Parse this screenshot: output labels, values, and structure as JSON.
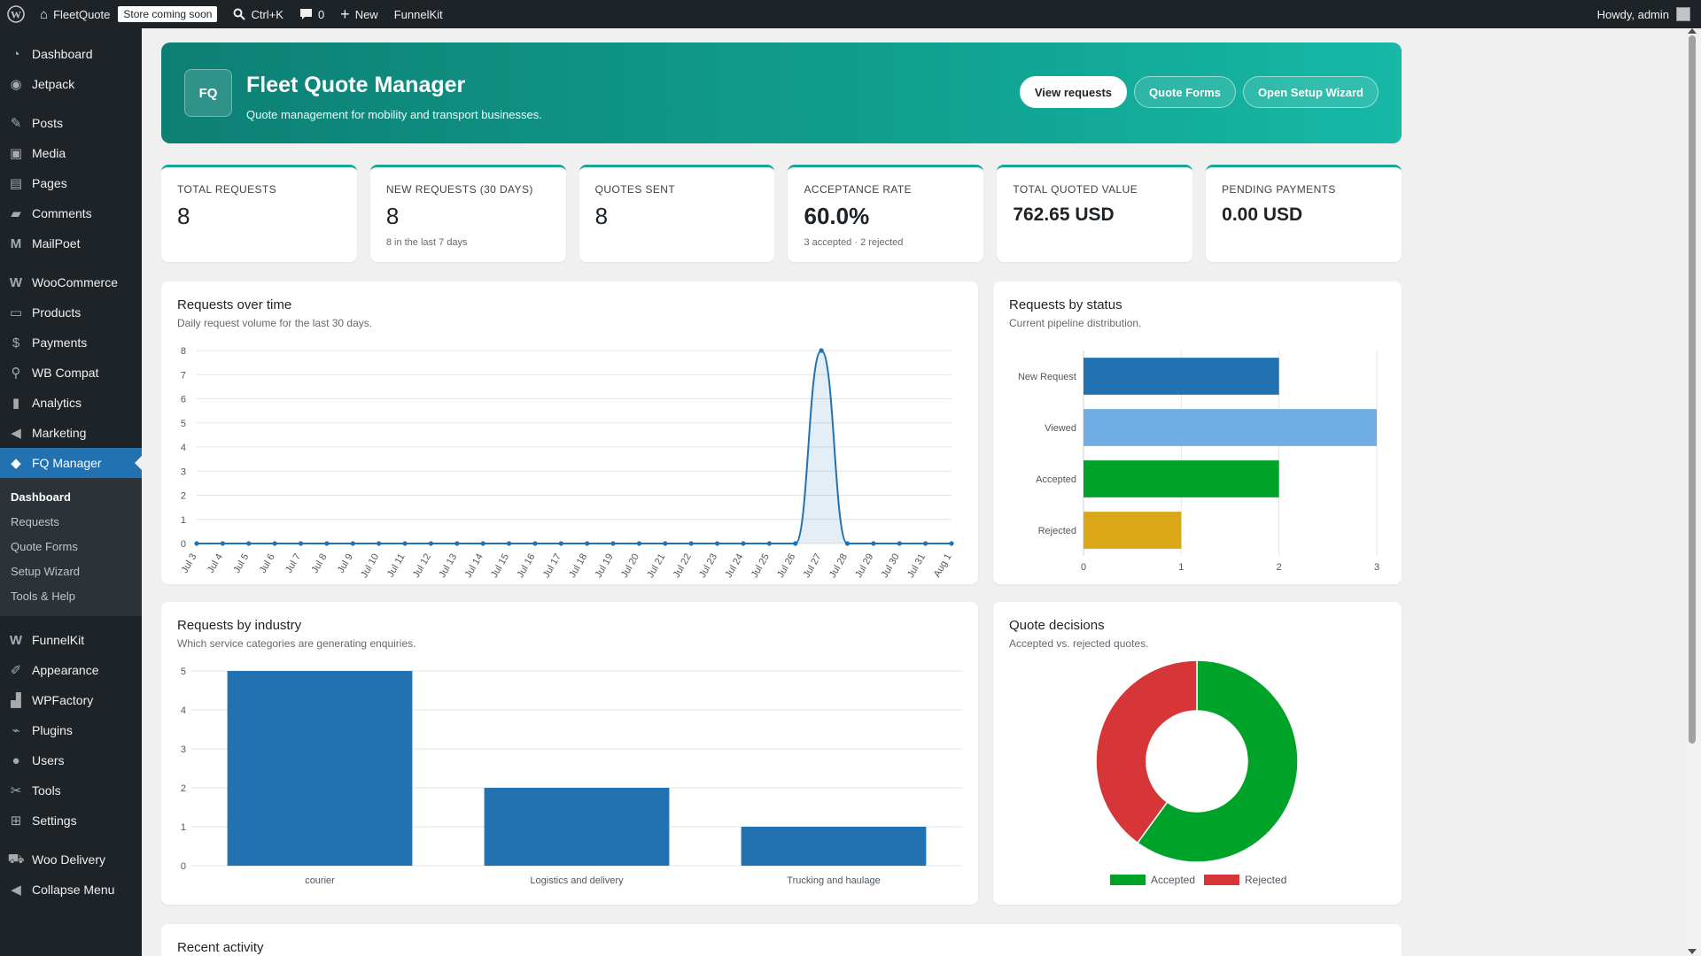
{
  "adminbar": {
    "site_name": "FleetQuote",
    "store_badge": "Store coming soon",
    "search_shortcut": "Ctrl+K",
    "comments_count": "0",
    "new_label": "New",
    "funnelkit_label": "FunnelKit",
    "greeting": "Howdy, admin"
  },
  "sidebar": {
    "items": [
      {
        "label": "Dashboard",
        "icon": "dashboard-icon"
      },
      {
        "label": "Jetpack",
        "icon": "jetpack-icon"
      },
      {
        "label": "Posts",
        "icon": "pin-icon"
      },
      {
        "label": "Media",
        "icon": "media-icon"
      },
      {
        "label": "Pages",
        "icon": "pages-icon"
      },
      {
        "label": "Comments",
        "icon": "comment-icon"
      },
      {
        "label": "MailPoet",
        "icon": "mailpoet-icon"
      },
      {
        "label": "WooCommerce",
        "icon": "woocommerce-icon"
      },
      {
        "label": "Products",
        "icon": "archive-icon"
      },
      {
        "label": "Payments",
        "icon": "dollar-icon"
      },
      {
        "label": "WB Compat",
        "icon": "search-icon"
      },
      {
        "label": "Analytics",
        "icon": "bar-chart-icon"
      },
      {
        "label": "Marketing",
        "icon": "megaphone-icon"
      },
      {
        "label": "FQ Manager",
        "icon": "tag-icon"
      },
      {
        "label": "FunnelKit",
        "icon": "funnelkit-icon"
      },
      {
        "label": "Appearance",
        "icon": "brush-icon"
      },
      {
        "label": "WPFactory",
        "icon": "factory-icon"
      },
      {
        "label": "Plugins",
        "icon": "plug-icon"
      },
      {
        "label": "Users",
        "icon": "user-icon"
      },
      {
        "label": "Tools",
        "icon": "wrench-icon"
      },
      {
        "label": "Settings",
        "icon": "settings-icon"
      },
      {
        "label": "Woo Delivery",
        "icon": "cart-icon"
      },
      {
        "label": "Collapse Menu",
        "icon": "collapse-icon"
      }
    ],
    "submenu": [
      "Dashboard",
      "Requests",
      "Quote Forms",
      "Setup Wizard",
      "Tools & Help"
    ]
  },
  "hero": {
    "logo": "FQ",
    "title": "Fleet Quote Manager",
    "subtitle": "Quote management for mobility and transport businesses.",
    "buttons": [
      "View requests",
      "Quote Forms",
      "Open Setup Wizard"
    ]
  },
  "stats": [
    {
      "label": "Total requests",
      "value": "8",
      "note": ""
    },
    {
      "label": "New requests (30 days)",
      "value": "8",
      "note": "8 in the last 7 days"
    },
    {
      "label": "Quotes sent",
      "value": "8",
      "note": ""
    },
    {
      "label": "Acceptance rate",
      "value": "60.0%",
      "note": "3 accepted · 2 rejected"
    },
    {
      "label": "Total quoted value",
      "value": "762.65 USD",
      "note": ""
    },
    {
      "label": "Pending payments",
      "value": "0.00 USD",
      "note": ""
    }
  ],
  "panels": {
    "over_time": {
      "title": "Requests over time",
      "subtitle": "Daily request volume for the last 30 days."
    },
    "by_status": {
      "title": "Requests by status",
      "subtitle": "Current pipeline distribution."
    },
    "by_industry": {
      "title": "Requests by industry",
      "subtitle": "Which service categories are generating enquiries."
    },
    "decisions": {
      "title": "Quote decisions",
      "subtitle": "Accepted vs. rejected quotes."
    },
    "recent": {
      "title": "Recent activity"
    }
  },
  "chart_data": [
    {
      "type": "area",
      "x": [
        "Jul 3",
        "Jul 4",
        "Jul 5",
        "Jul 6",
        "Jul 7",
        "Jul 8",
        "Jul 9",
        "Jul 10",
        "Jul 11",
        "Jul 12",
        "Jul 13",
        "Jul 14",
        "Jul 15",
        "Jul 16",
        "Jul 17",
        "Jul 18",
        "Jul 19",
        "Jul 20",
        "Jul 21",
        "Jul 22",
        "Jul 23",
        "Jul 24",
        "Jul 25",
        "Jul 26",
        "Jul 27",
        "Jul 28",
        "Jul 29",
        "Jul 30",
        "Jul 31",
        "Aug 1"
      ],
      "values": [
        0,
        0,
        0,
        0,
        0,
        0,
        0,
        0,
        0,
        0,
        0,
        0,
        0,
        0,
        0,
        0,
        0,
        0,
        0,
        0,
        0,
        0,
        0,
        0,
        8,
        0,
        0,
        0,
        0,
        0
      ],
      "yticks": [
        0,
        1,
        2,
        3,
        4,
        5,
        6,
        7,
        8
      ],
      "ylim": [
        0,
        8
      ],
      "color": "#2271b1",
      "grid": true
    },
    {
      "type": "bar",
      "orientation": "horizontal",
      "categories": [
        "New Request",
        "Viewed",
        "Accepted",
        "Rejected"
      ],
      "values": [
        2,
        3,
        2,
        1
      ],
      "colors": [
        "#2271b1",
        "#72aee6",
        "#00a32a",
        "#dba617"
      ],
      "xticks": [
        0,
        1,
        2,
        3
      ],
      "xlim": [
        0,
        3
      ],
      "grid": true
    },
    {
      "type": "bar",
      "categories": [
        "courier",
        "Logistics and delivery",
        "Trucking and haulage"
      ],
      "values": [
        5,
        2,
        1
      ],
      "color": "#2271b1",
      "yticks": [
        0,
        1,
        2,
        3,
        4,
        5
      ],
      "ylim": [
        0,
        5
      ],
      "grid": true
    },
    {
      "type": "pie",
      "donut": true,
      "labels": [
        "Accepted",
        "Rejected"
      ],
      "values": [
        3,
        2
      ],
      "colors": [
        "#00a32a",
        "#d63638"
      ],
      "legend": "bottom"
    }
  ]
}
